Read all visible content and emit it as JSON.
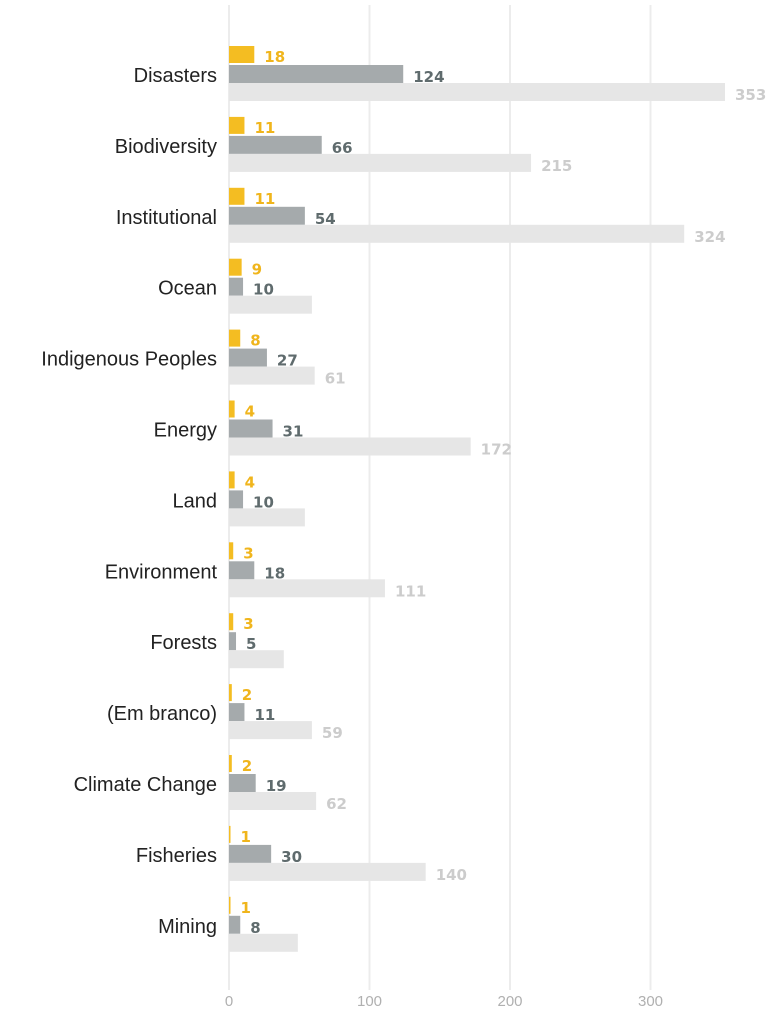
{
  "chart_data": {
    "type": "bar",
    "orientation": "horizontal",
    "categories": [
      "Disasters",
      "Biodiversity",
      "Institutional",
      "Ocean",
      "Indigenous Peoples",
      "Energy",
      "Land",
      "Environment",
      "Forests",
      "(Em branco)",
      "Climate Change",
      "Fisheries",
      "Mining"
    ],
    "series": [
      {
        "color": "#f4bd22",
        "label_color": "#f0b51c",
        "values": [
          18,
          11,
          11,
          9,
          8,
          4,
          4,
          3,
          3,
          2,
          2,
          1,
          1
        ]
      },
      {
        "color": "#a5aaac",
        "label_color": "#5f6b6d",
        "values": [
          124,
          66,
          54,
          10,
          27,
          31,
          10,
          18,
          5,
          11,
          19,
          30,
          8
        ]
      },
      {
        "color": "#e6e6e6",
        "label_color": "#cccccc",
        "values": [
          353,
          215,
          324,
          59,
          61,
          172,
          54,
          111,
          39,
          59,
          62,
          140,
          49
        ]
      }
    ],
    "hidden_labels": [
      [],
      [],
      [
        3,
        6,
        8,
        12
      ],
      []
    ],
    "x_ticks": [
      "0",
      "100",
      "200",
      "300"
    ],
    "xlim": [
      0,
      380
    ],
    "grid": true,
    "legend": "none",
    "title": "",
    "xlabel": "",
    "ylabel": ""
  }
}
